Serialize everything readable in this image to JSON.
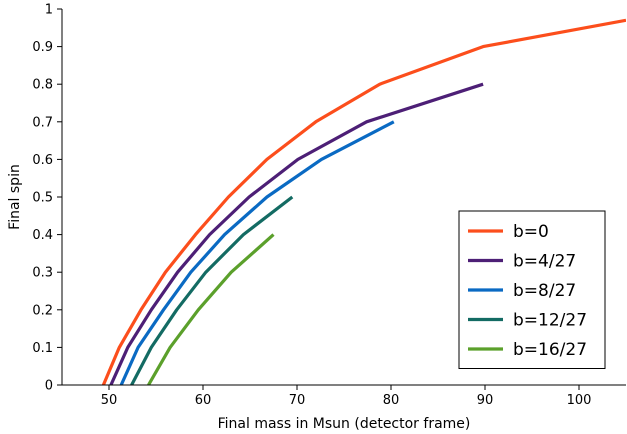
{
  "chart_data": {
    "type": "line",
    "title": "",
    "xlabel": "Final mass in Msun (detector frame)",
    "ylabel": "Final spin",
    "xlim": [
      45,
      105
    ],
    "ylim": [
      0,
      1
    ],
    "xticks": [
      50,
      60,
      70,
      80,
      90,
      100
    ],
    "yticks": [
      0,
      0.1,
      0.2,
      0.3,
      0.4,
      0.5,
      0.6,
      0.7,
      0.8,
      0.9,
      1
    ],
    "grid": false,
    "legend_position": "lower-right",
    "series": [
      {
        "name": "b=0",
        "color": "#fc4e1c",
        "x": [
          49.4,
          51.1,
          53.4,
          56.0,
          59.2,
          62.7,
          66.8,
          72.0,
          78.8,
          89.8,
          105.0
        ],
        "y": [
          0.0,
          0.1,
          0.2,
          0.3,
          0.4,
          0.5,
          0.6,
          0.7,
          0.8,
          0.9,
          0.97
        ]
      },
      {
        "name": "b=4/27",
        "color": "#4d1f76",
        "x": [
          50.2,
          52.0,
          54.5,
          57.3,
          60.7,
          64.9,
          70.1,
          77.4,
          89.8
        ],
        "y": [
          0.0,
          0.1,
          0.2,
          0.3,
          0.4,
          0.5,
          0.6,
          0.7,
          0.8
        ]
      },
      {
        "name": "b=8/27",
        "color": "#0a6ac3",
        "x": [
          51.3,
          53.1,
          55.8,
          58.7,
          62.3,
          66.8,
          72.6,
          80.3
        ],
        "y": [
          0.0,
          0.1,
          0.2,
          0.3,
          0.4,
          0.5,
          0.6,
          0.7
        ]
      },
      {
        "name": "b=12/27",
        "color": "#136b63",
        "x": [
          52.4,
          54.5,
          57.2,
          60.3,
          64.3,
          69.5
        ],
        "y": [
          0.0,
          0.1,
          0.2,
          0.3,
          0.4,
          0.5
        ]
      },
      {
        "name": "b=16/27",
        "color": "#5ba02b",
        "x": [
          54.2,
          56.5,
          59.5,
          63.0,
          67.5
        ],
        "y": [
          0.0,
          0.1,
          0.2,
          0.3,
          0.4
        ]
      }
    ]
  }
}
